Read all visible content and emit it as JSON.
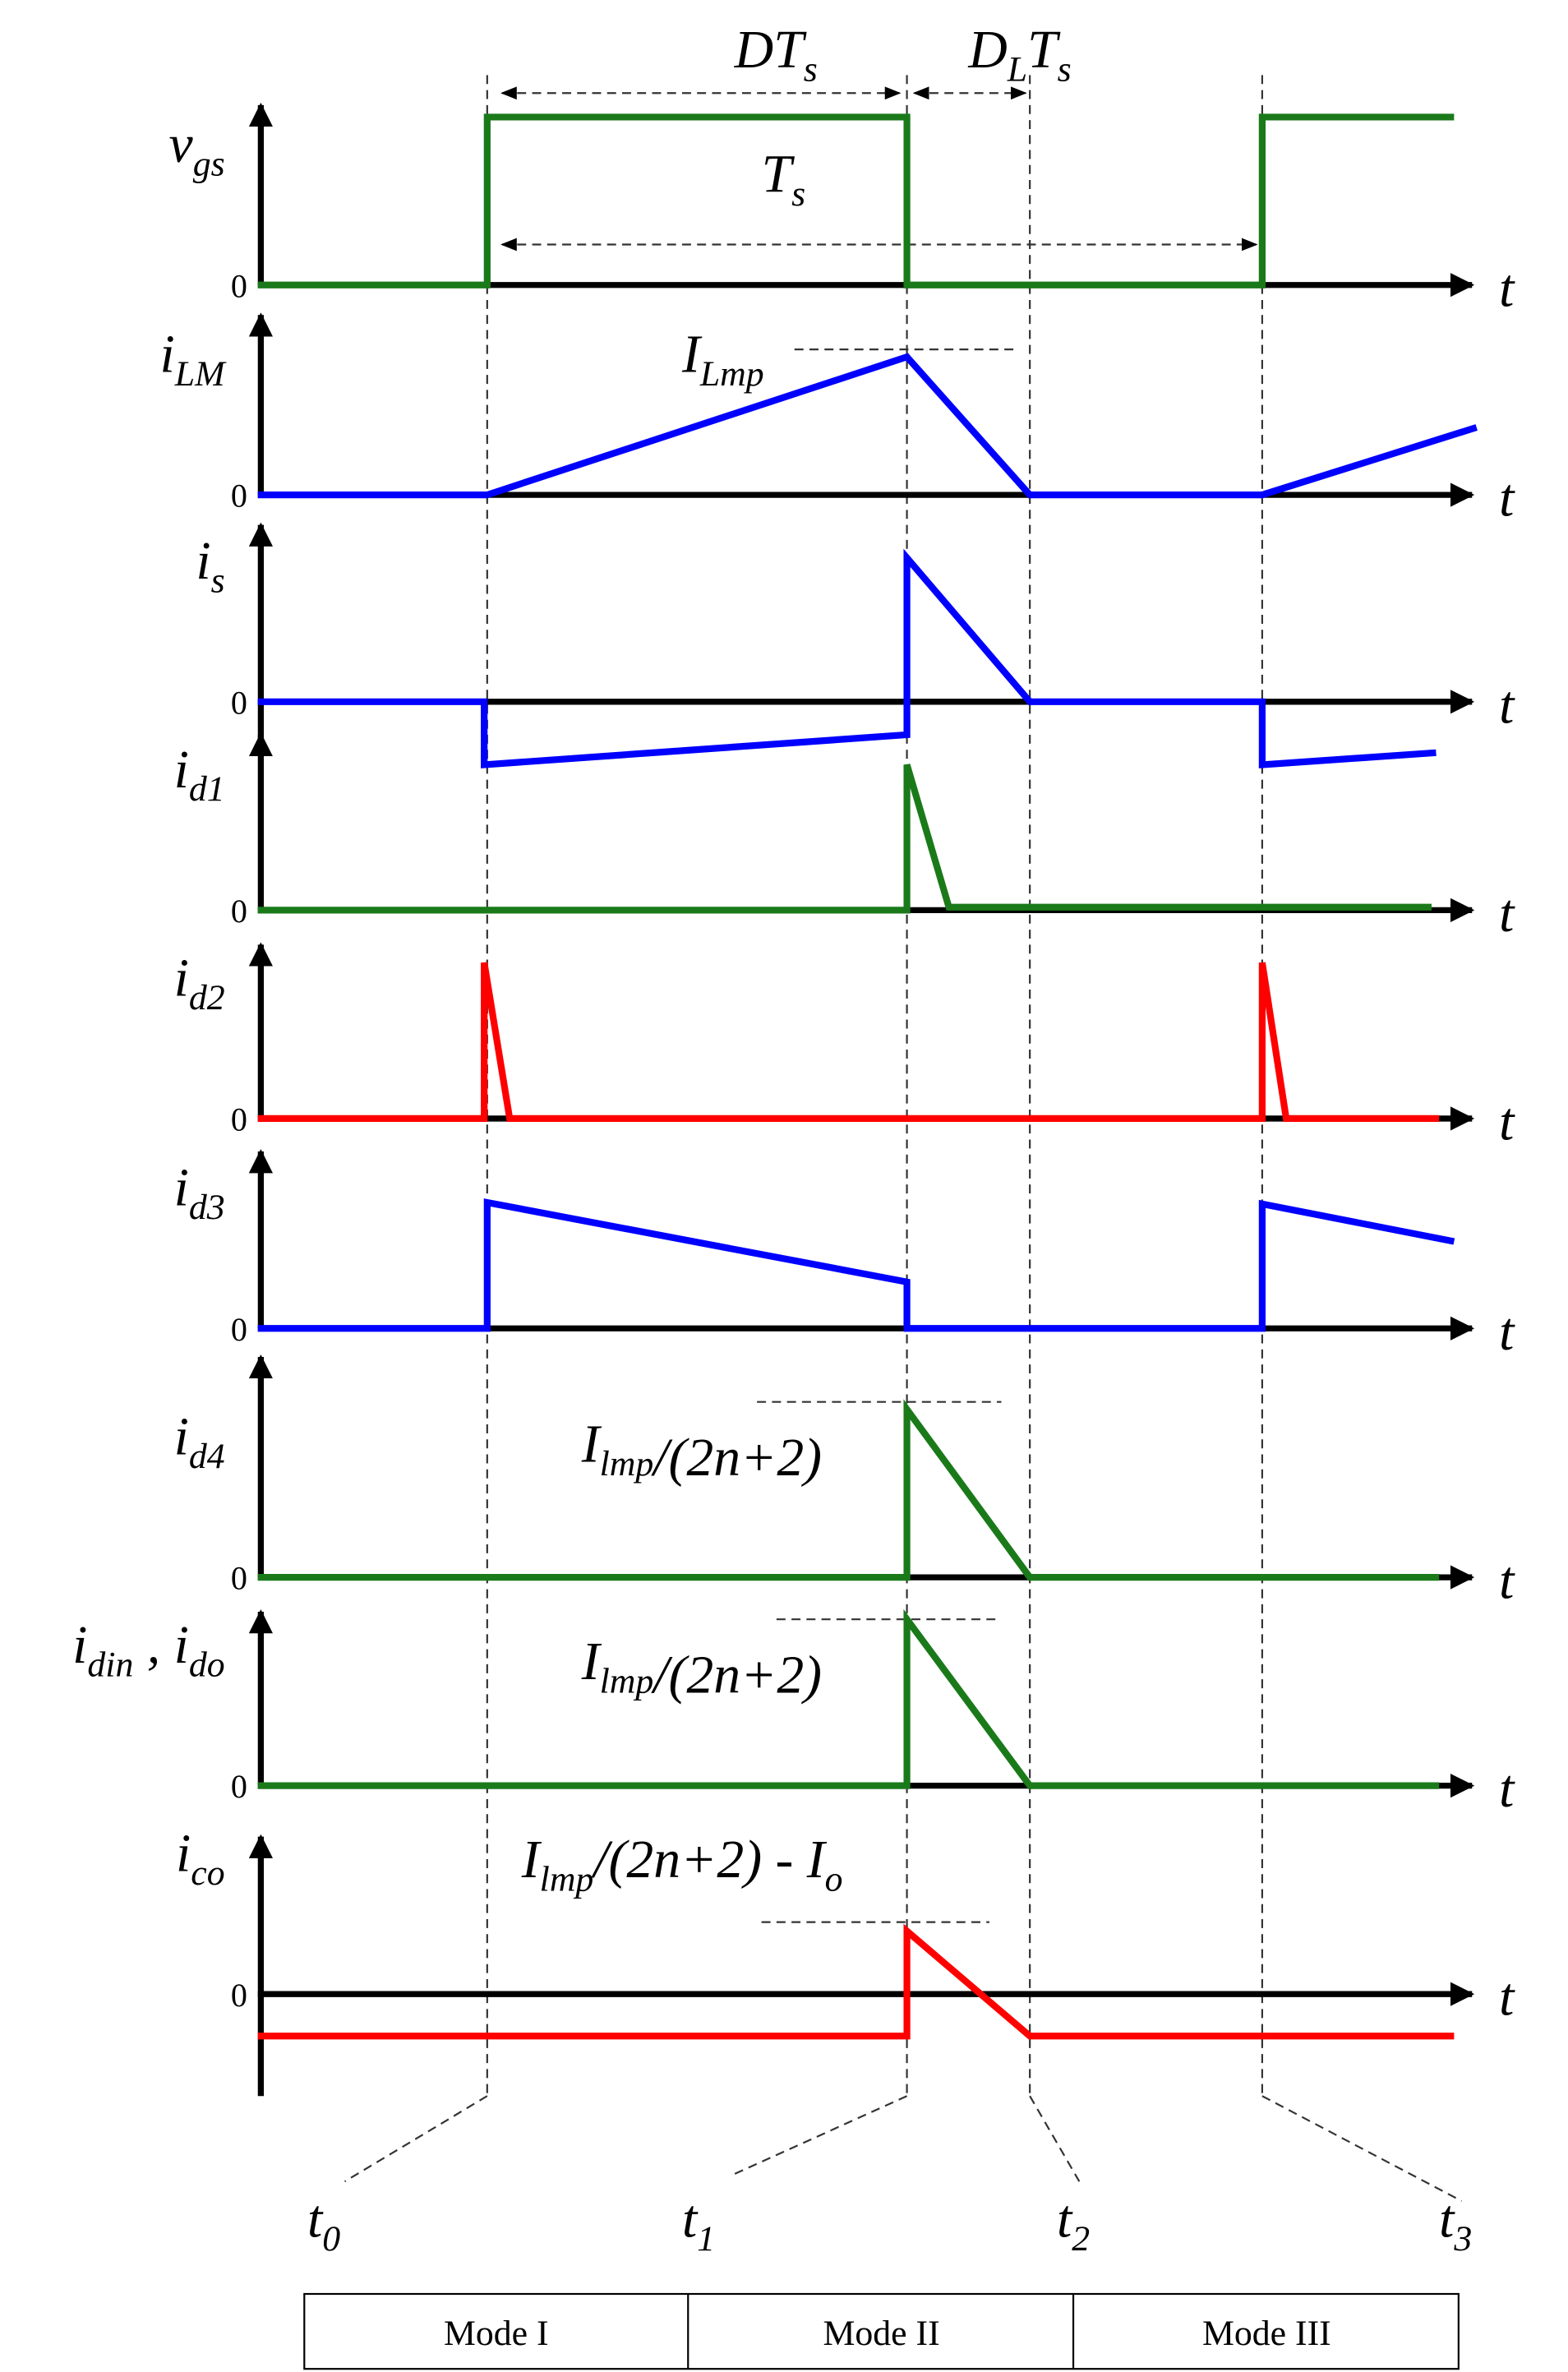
{
  "waveforms": [
    {
      "label": [
        {
          "base": "v",
          "sub": "gs"
        }
      ],
      "zero": "0",
      "axis": "t"
    },
    {
      "label": [
        {
          "base": "i",
          "sub": "LM"
        }
      ],
      "zero": "0",
      "axis": "t"
    },
    {
      "label": [
        {
          "base": "i",
          "sub": "s"
        }
      ],
      "zero": "0",
      "axis": "t"
    },
    {
      "label": [
        {
          "base": "i",
          "sub": "d1"
        }
      ],
      "zero": "0",
      "axis": "t"
    },
    {
      "label": [
        {
          "base": "i",
          "sub": "d2"
        }
      ],
      "zero": "0",
      "axis": "t"
    },
    {
      "label": [
        {
          "base": "i",
          "sub": "d3"
        }
      ],
      "zero": "0",
      "axis": "t"
    },
    {
      "label": [
        {
          "base": "i",
          "sub": "d4"
        }
      ],
      "zero": "0",
      "axis": "t"
    },
    {
      "label": [
        {
          "base": "i",
          "sub": "din"
        },
        {
          "base": " , i",
          "sub": "do"
        }
      ],
      "zero": "0",
      "axis": "t"
    },
    {
      "label": [
        {
          "base": "i",
          "sub": "co"
        }
      ],
      "zero": "0",
      "axis": "t"
    }
  ],
  "annotations": {
    "duty": [
      {
        "base": "DT",
        "sub": "s"
      }
    ],
    "dl": [
      {
        "base": "D",
        "sub": "L"
      },
      {
        "base": "T",
        "sub": "s"
      }
    ],
    "period": [
      {
        "base": "T",
        "sub": "s"
      }
    ],
    "ilmp": [
      {
        "base": "I",
        "sub": "Lmp"
      }
    ],
    "id4_peak": [
      {
        "base": "I",
        "sub": "lmp"
      },
      {
        "base": "/(2n+2)"
      }
    ],
    "idin_peak": [
      {
        "base": "I",
        "sub": "lmp"
      },
      {
        "base": "/(2n+2)"
      }
    ],
    "ico_peak": [
      {
        "base": "I",
        "sub": "lmp"
      },
      {
        "base": "/(2n+2) - I",
        "sub": "o"
      }
    ]
  },
  "time_marks": [
    [
      {
        "base": "t",
        "sub": "0"
      }
    ],
    [
      {
        "base": "t",
        "sub": "1"
      }
    ],
    [
      {
        "base": "t",
        "sub": "2"
      }
    ],
    [
      {
        "base": "t",
        "sub": "3"
      }
    ]
  ],
  "modes": [
    "Mode I",
    "Mode II",
    "Mode III"
  ]
}
